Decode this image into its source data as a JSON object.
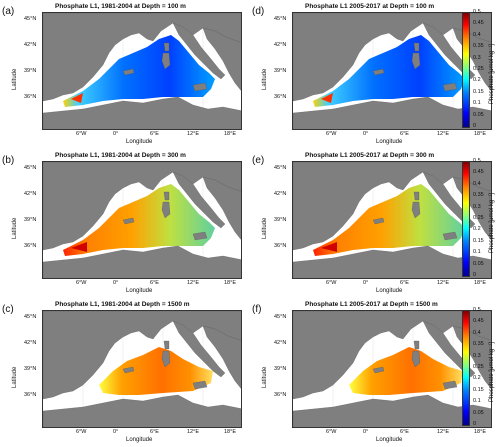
{
  "panels": [
    {
      "id": "a",
      "label": "(a)",
      "title": "Phosphate L1, 1981-2004 at Depth = 100 m",
      "field": "low"
    },
    {
      "id": "d",
      "label": "(d)",
      "title": "Phosphate L1 2005-2017 at Depth = 100 m",
      "field": "low"
    },
    {
      "id": "b",
      "label": "(b)",
      "title": "Phosphate L1, 1981-2004 at Depth = 300 m",
      "field": "mid"
    },
    {
      "id": "e",
      "label": "(e)",
      "title": "Phosphate L1 2005-2017 at Depth = 300 m",
      "field": "mid"
    },
    {
      "id": "c",
      "label": "(c)",
      "title": "Phosphate L1, 1981-2004 at Depth = 1500 m",
      "field": "deep"
    },
    {
      "id": "f",
      "label": "(f)",
      "title": "Phosphate L1 2005-2017 at Depth = 1500 m",
      "field": "deep"
    }
  ],
  "axes": {
    "xlabel": "Longitude",
    "ylabel": "Latitude",
    "xticks": [
      "6°W",
      "0°",
      "6°E",
      "12°E",
      "18°E"
    ],
    "yticks": [
      "45°N",
      "42°N",
      "39°N",
      "36°N"
    ]
  },
  "colorbar": {
    "title": "Phosphate [μmol kg⁻¹]",
    "ticks": [
      "0.5",
      "0.45",
      "0.4",
      "0.35",
      "0.3",
      "0.25",
      "0.2",
      "0.15",
      "0.1",
      "0.05",
      "0"
    ],
    "range": [
      0,
      0.5
    ]
  },
  "colors": {
    "land": "#7f7f7f",
    "ocean_nodata": "#ffffff"
  }
}
